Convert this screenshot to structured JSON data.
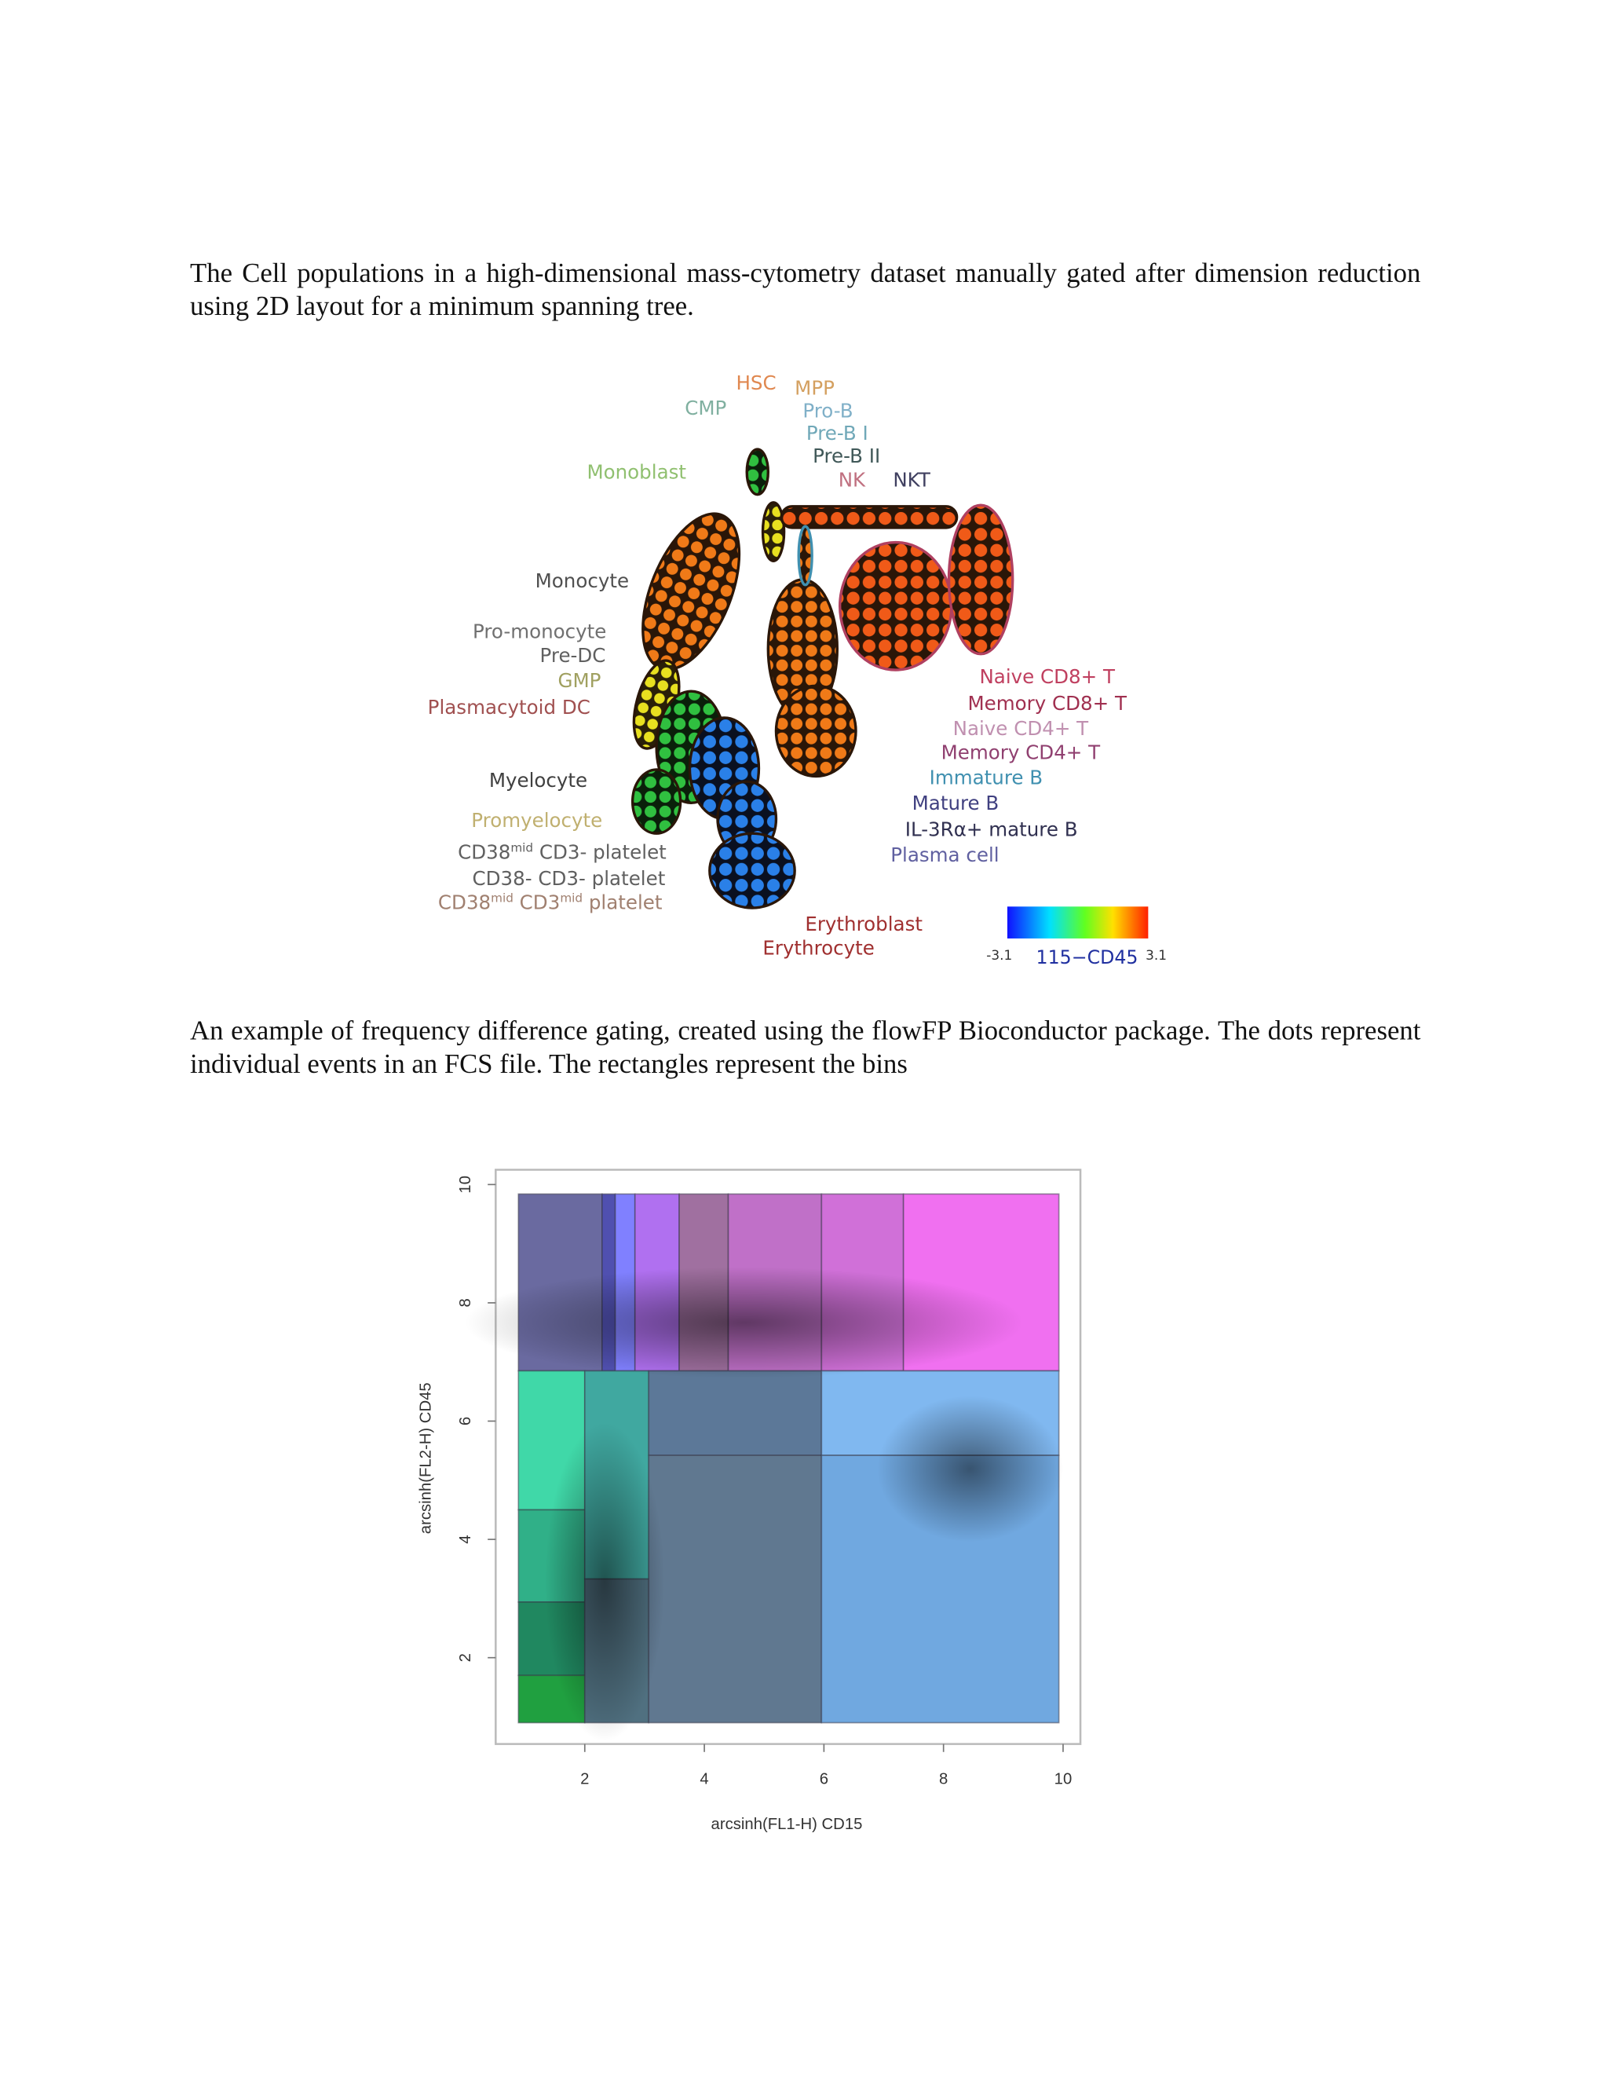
{
  "document": {
    "paragraphs": [
      "The Cell populations in a high-dimensional mass-cytometry dataset manually gated after dimension reduction using 2D layout for a minimum spanning tree.",
      "An example of frequency difference gating, created using the flowFP Bioconductor package. The dots represent individual events in an FCS file. The rectangles represent the bins"
    ],
    "figure1": {
      "labels": [
        {
          "text": [
            "HSC"
          ],
          "color": "#e08850"
        },
        {
          "text": [
            "MPP"
          ],
          "color": "#d4a060"
        },
        {
          "text": [
            "CMP"
          ],
          "color": "#80b0a0"
        },
        {
          "text": [
            "Pro-B"
          ],
          "color": "#80b0c8"
        },
        {
          "text": [
            "Pre-B I"
          ],
          "color": "#70a8b8"
        },
        {
          "text": [
            "Pre-B II"
          ],
          "color": "#405858"
        },
        {
          "text": [
            "NK"
          ],
          "color": "#c07080"
        },
        {
          "text": [
            "NKT"
          ],
          "color": "#404060"
        },
        {
          "text": [
            "Monoblast"
          ],
          "color": "#90c070"
        },
        {
          "text": [
            "Monocyte"
          ],
          "color": "#505050"
        },
        {
          "text": [
            "Pro-monocyte"
          ],
          "color": "#707070"
        },
        {
          "text": [
            "Pre-DC"
          ],
          "color": "#606060"
        },
        {
          "text": [
            "GMP"
          ],
          "color": "#a0a060"
        },
        {
          "text": [
            "Plasmacytoid DC"
          ],
          "color": "#a05050"
        },
        {
          "text": [
            "Myelocyte"
          ],
          "color": "#404040"
        },
        {
          "text": [
            "Promyelocyte"
          ],
          "color": "#c0b070"
        },
        {
          "text": [
            "CD38",
            "mid",
            " CD3- platelet"
          ],
          "color": "#606060"
        },
        {
          "text": [
            "CD38- CD3- platelet"
          ],
          "color": "#606060"
        },
        {
          "text": [
            "CD38",
            "mid",
            " CD3",
            "mid",
            " platelet"
          ],
          "color": "#a08070"
        },
        {
          "text": [
            "Naive CD8+ T"
          ],
          "color": "#c04060"
        },
        {
          "text": [
            "Memory CD8+ T"
          ],
          "color": "#a03050"
        },
        {
          "text": [
            "Naive CD4+ T"
          ],
          "color": "#c090b0"
        },
        {
          "text": [
            "Memory CD4+ T"
          ],
          "color": "#904070"
        },
        {
          "text": [
            "Immature B"
          ],
          "color": "#4090b0"
        },
        {
          "text": [
            "Mature B"
          ],
          "color": "#404080"
        },
        {
          "text": [
            "IL-3Rα+ mature B"
          ],
          "color": "#303050"
        },
        {
          "text": [
            "Plasma cell"
          ],
          "color": "#6060a0"
        },
        {
          "text": [
            "Erythroblast"
          ],
          "color": "#a03030"
        },
        {
          "text": [
            "Erythrocyte"
          ],
          "color": "#a03030"
        }
      ],
      "colorbar": {
        "min_label": "-3.1",
        "title": "115−CD45",
        "max_label": "3.1"
      }
    }
  },
  "chart_data": {
    "type": "rect-bins",
    "xlabel": "arcsinh(FL1-H)  CD15",
    "ylabel": "arcsinh(FL2-H)  CD45",
    "xlim": [
      0.51,
      10.29
    ],
    "ylim": [
      0.54,
      10.25
    ],
    "xticks": [
      2,
      4,
      6,
      8,
      10
    ],
    "yticks": [
      2,
      4,
      6,
      8,
      10
    ],
    "regions": [
      {
        "x": [
          0.89,
          2.29
        ],
        "y": [
          6.85,
          9.84
        ],
        "color": "#6a6aa0"
      },
      {
        "x": [
          2.29,
          2.51
        ],
        "y": [
          6.85,
          9.84
        ],
        "color": "#5050b0"
      },
      {
        "x": [
          2.51,
          2.84
        ],
        "y": [
          6.85,
          9.84
        ],
        "color": "#8080ff"
      },
      {
        "x": [
          2.84,
          3.58
        ],
        "y": [
          6.85,
          9.84
        ],
        "color": "#b070f0"
      },
      {
        "x": [
          3.58,
          4.4
        ],
        "y": [
          6.85,
          9.84
        ],
        "color": "#a070a0"
      },
      {
        "x": [
          4.4,
          5.96
        ],
        "y": [
          6.85,
          9.84
        ],
        "color": "#c070c8"
      },
      {
        "x": [
          5.96,
          7.33
        ],
        "y": [
          6.85,
          9.84
        ],
        "color": "#d070d8"
      },
      {
        "x": [
          7.33,
          9.93
        ],
        "y": [
          6.85,
          9.84
        ],
        "color": "#f070f0"
      },
      {
        "x": [
          0.89,
          2.0
        ],
        "y": [
          4.5,
          6.85
        ],
        "color": "#40d8a8"
      },
      {
        "x": [
          0.89,
          2.0
        ],
        "y": [
          2.94,
          4.5
        ],
        "color": "#30b088"
      },
      {
        "x": [
          0.89,
          2.0
        ],
        "y": [
          1.7,
          2.94
        ],
        "color": "#208860"
      },
      {
        "x": [
          0.89,
          2.0
        ],
        "y": [
          0.9,
          1.7
        ],
        "color": "#20a040"
      },
      {
        "x": [
          2.0,
          3.07
        ],
        "y": [
          3.33,
          6.85
        ],
        "color": "#40a8a0"
      },
      {
        "x": [
          2.0,
          3.07
        ],
        "y": [
          0.9,
          3.33
        ],
        "color": "#507080"
      },
      {
        "x": [
          3.07,
          5.96
        ],
        "y": [
          5.42,
          6.85
        ],
        "color": "#5c7898"
      },
      {
        "x": [
          3.07,
          5.96
        ],
        "y": [
          0.9,
          5.42
        ],
        "color": "#607890"
      },
      {
        "x": [
          5.96,
          9.93
        ],
        "y": [
          5.42,
          6.85
        ],
        "color": "#80b8f0"
      },
      {
        "x": [
          5.96,
          9.93
        ],
        "y": [
          0.9,
          5.42
        ],
        "color": "#70a8e0"
      }
    ]
  }
}
